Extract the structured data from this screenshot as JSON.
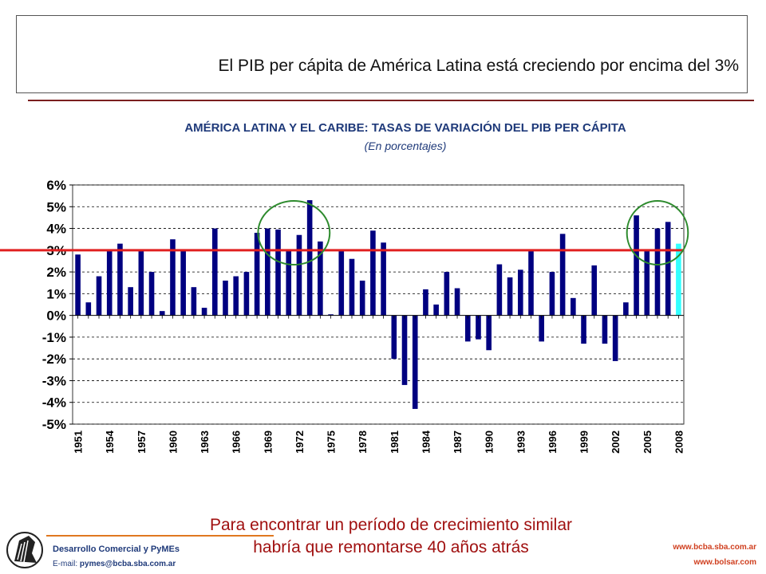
{
  "slide": {
    "title": "El PIB per cápita de América Latina está creciendo por encima del 3%",
    "caption_line1": "Para encontrar un período de crecimiento similar",
    "caption_line2": "habría que remontarse 40 años atrás"
  },
  "footer": {
    "department": "Desarrollo Comercial y PyMEs",
    "email_label": "E-mail: ",
    "email": "pymes@bcba.sba.com.ar",
    "url1": "www.bcba.sba.com.ar",
    "url2": "www.bolsar.com"
  },
  "colors": {
    "bar": "#000080",
    "bar_highlight": "#33ffff",
    "reference_line": "#e02020",
    "highlight_ellipse": "#2e8b2e",
    "title_text": "#1f3a7a",
    "caption_text": "#a01010"
  },
  "chart_data": {
    "type": "bar",
    "title": "AMÉRICA LATINA Y EL CARIBE: TASAS DE VARIACIÓN DEL PIB PER CÁPITA",
    "subtitle": "(En porcentajes)",
    "xlabel": "",
    "ylabel": "",
    "ylim": [
      -5,
      6
    ],
    "y_ticks": [
      "6%",
      "5%",
      "4%",
      "3%",
      "2%",
      "1%",
      "0%",
      "-1%",
      "-2%",
      "-3%",
      "-4%",
      "-5%"
    ],
    "x_tick_labels": [
      "1951",
      "1954",
      "1957",
      "1960",
      "1963",
      "1966",
      "1969",
      "1972",
      "1975",
      "1978",
      "1981",
      "1984",
      "1987",
      "1990",
      "1993",
      "1996",
      "1999",
      "2002",
      "2005",
      "2008"
    ],
    "categories": [
      1951,
      1952,
      1953,
      1954,
      1955,
      1956,
      1957,
      1958,
      1959,
      1960,
      1961,
      1962,
      1963,
      1964,
      1965,
      1966,
      1967,
      1968,
      1969,
      1970,
      1971,
      1972,
      1973,
      1974,
      1975,
      1976,
      1977,
      1978,
      1979,
      1980,
      1981,
      1982,
      1983,
      1984,
      1985,
      1986,
      1987,
      1988,
      1989,
      1990,
      1991,
      1992,
      1993,
      1994,
      1995,
      1996,
      1997,
      1998,
      1999,
      2000,
      2001,
      2002,
      2003,
      2004,
      2005,
      2006,
      2007,
      2008
    ],
    "values": [
      2.8,
      0.6,
      1.8,
      3.0,
      3.3,
      1.3,
      3.0,
      2.0,
      0.2,
      3.5,
      3.0,
      1.3,
      0.35,
      4.0,
      1.6,
      1.8,
      2.0,
      3.8,
      4.0,
      3.95,
      3.0,
      3.7,
      5.3,
      3.4,
      0.05,
      3.0,
      2.6,
      1.6,
      3.9,
      3.35,
      -2.0,
      -3.2,
      -4.3,
      1.2,
      0.5,
      2.0,
      1.25,
      -1.2,
      -1.1,
      -1.6,
      2.35,
      1.75,
      2.1,
      3.0,
      -1.2,
      2.0,
      3.75,
      0.8,
      -1.3,
      2.3,
      -1.3,
      -2.1,
      0.6,
      4.6,
      3.0,
      4.0,
      4.3,
      3.3
    ],
    "highlighted_category": 2008,
    "reference_line": 3,
    "grid": true,
    "highlight_groups": [
      [
        1969,
        1974
      ],
      [
        2004,
        2008
      ]
    ]
  }
}
